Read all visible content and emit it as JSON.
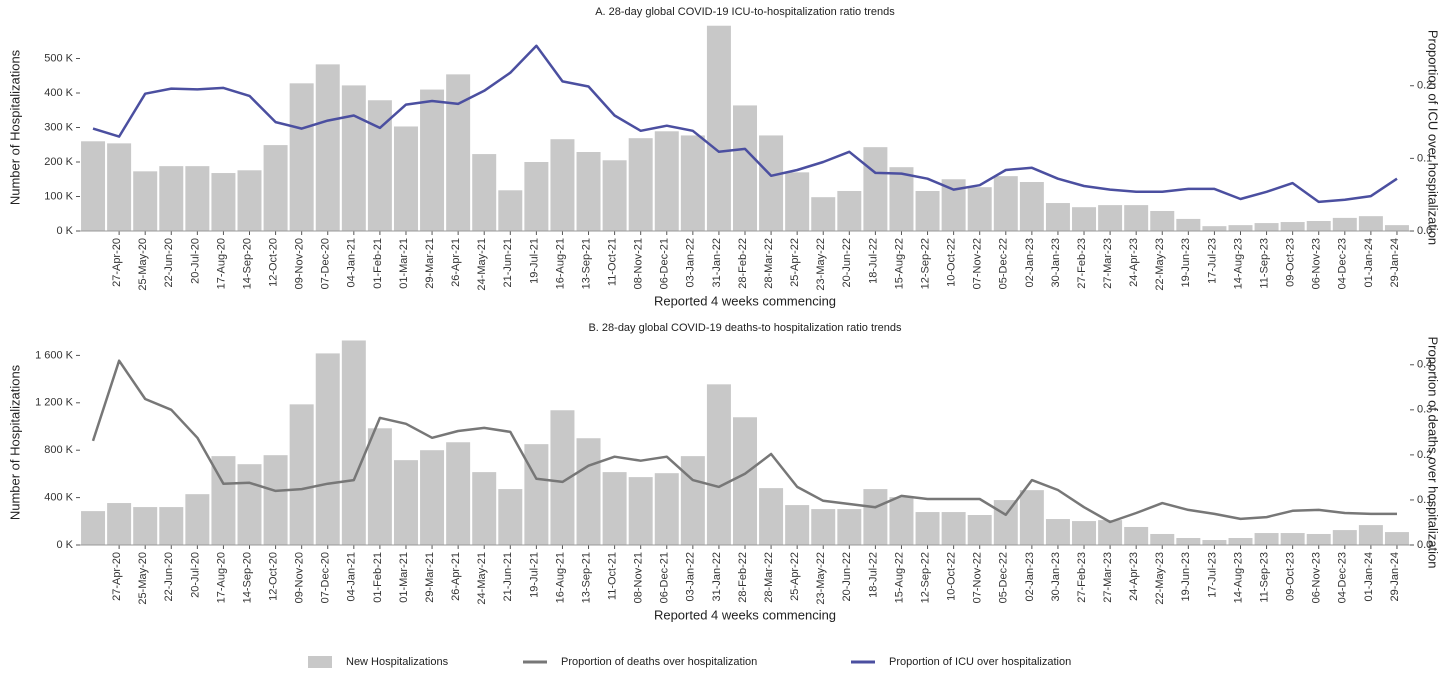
{
  "chart_data": [
    {
      "type": "combo",
      "title": "A. 28-day global COVID-19 ICU-to-hospitalization ratio trends",
      "x_label": "Reported 4 weeks commencing",
      "y_label": "Number of Hospitalizations",
      "y2_label": "Proportion of ICU over hospitalization",
      "categories": [
        null,
        "27-Apr-20",
        "25-May-20",
        "22-Jun-20",
        "20-Jul-20",
        "17-Aug-20",
        "14-Sep-20",
        "12-Oct-20",
        "09-Nov-20",
        "07-Dec-20",
        "04-Jan-21",
        "01-Feb-21",
        "01-Mar-21",
        "29-Mar-21",
        "26-Apr-21",
        "24-May-21",
        "21-Jun-21",
        "19-Jul-21",
        "16-Aug-21",
        "13-Sep-21",
        "11-Oct-21",
        "08-Nov-21",
        "06-Dec-21",
        "03-Jan-22",
        "31-Jan-22",
        "28-Feb-22",
        "28-Mar-22",
        "25-Apr-22",
        "23-May-22",
        "20-Jun-22",
        "18-Jul-22",
        "15-Aug-22",
        "12-Sep-22",
        "10-Oct-22",
        "07-Nov-22",
        "05-Dec-22",
        "02-Jan-23",
        "30-Jan-23",
        "27-Feb-23",
        "27-Mar-23",
        "24-Apr-23",
        "22-May-23",
        "19-Jun-23",
        "17-Jul-23",
        "14-Aug-23",
        "11-Sep-23",
        "09-Oct-23",
        "06-Nov-23",
        "04-Dec-23",
        "01-Jan-24",
        "29-Jan-24"
      ],
      "series": [
        {
          "name": "New Hospitalizations",
          "type": "bar",
          "color": "#c8c8c8",
          "values": [
            260000,
            254000,
            173000,
            188000,
            188000,
            168000,
            176000,
            249000,
            428000,
            483000,
            422000,
            379000,
            303000,
            410000,
            454000,
            223000,
            118000,
            200000,
            266000,
            229000,
            205000,
            269000,
            289000,
            277000,
            595000,
            364000,
            277000,
            170000,
            98000,
            116000,
            243000,
            185000,
            116000,
            150000,
            127000,
            159000,
            142000,
            81000,
            69000,
            75000,
            75000,
            58000,
            35000,
            14000,
            17000,
            23000,
            26000,
            29000,
            38000,
            43000,
            17000
          ]
        },
        {
          "name": "Proportion of ICU over hospitalization",
          "type": "line",
          "axis": "y2",
          "color": "#4b4fa0",
          "values": [
            0.141,
            0.13,
            0.189,
            0.196,
            0.195,
            0.197,
            0.186,
            0.15,
            0.141,
            0.152,
            0.159,
            0.142,
            0.174,
            0.179,
            0.175,
            0.193,
            0.218,
            0.255,
            0.206,
            0.199,
            0.159,
            0.138,
            0.145,
            0.138,
            0.109,
            0.113,
            0.076,
            0.084,
            0.095,
            0.109,
            0.08,
            0.079,
            0.072,
            0.057,
            0.063,
            0.084,
            0.087,
            0.072,
            0.062,
            0.057,
            0.054,
            0.054,
            0.058,
            0.058,
            0.044,
            0.054,
            0.066,
            0.04,
            0.043,
            0.048,
            0.072
          ]
        }
      ],
      "ylim": [
        0,
        600000
      ],
      "yticks": [
        {
          "value": 0,
          "label": "0 K"
        },
        {
          "value": 100000,
          "label": "100 K"
        },
        {
          "value": 200000,
          "label": "200 K"
        },
        {
          "value": 300000,
          "label": "300 K"
        },
        {
          "value": 400000,
          "label": "400 K"
        },
        {
          "value": 500000,
          "label": "500 K"
        }
      ],
      "y2lim": [
        0,
        0.285
      ],
      "y2ticks": [
        {
          "value": 0,
          "label": "0.0"
        },
        0.1,
        0.2
      ]
    },
    {
      "type": "combo",
      "title": "B. 28-day global COVID-19 deaths-to hospitalization ratio trends",
      "x_label": "Reported 4 weeks commencing",
      "y_label": "Number of Hospitalizations",
      "y2_label": "Proportion of deaths over hospitalization",
      "categories": [
        null,
        "27-Apr-20",
        "25-May-20",
        "22-Jun-20",
        "20-Jul-20",
        "17-Aug-20",
        "14-Sep-20",
        "12-Oct-20",
        "09-Nov-20",
        "07-Dec-20",
        "04-Jan-21",
        "01-Feb-21",
        "01-Mar-21",
        "29-Mar-21",
        "26-Apr-21",
        "24-May-21",
        "21-Jun-21",
        "19-Jul-21",
        "16-Aug-21",
        "13-Sep-21",
        "11-Oct-21",
        "08-Nov-21",
        "06-Dec-21",
        "03-Jan-22",
        "31-Jan-22",
        "28-Feb-22",
        "28-Mar-22",
        "25-Apr-22",
        "23-May-22",
        "20-Jun-22",
        "18-Jul-22",
        "15-Aug-22",
        "12-Sep-22",
        "10-Oct-22",
        "07-Nov-22",
        "05-Dec-22",
        "02-Jan-23",
        "30-Jan-23",
        "27-Feb-23",
        "27-Mar-23",
        "24-Apr-23",
        "22-May-23",
        "19-Jun-23",
        "17-Jul-23",
        "14-Aug-23",
        "11-Sep-23",
        "09-Oct-23",
        "06-Nov-23",
        "04-Dec-23",
        "01-Jan-24",
        "29-Jan-24"
      ],
      "series": [
        {
          "name": "New Hospitalizations",
          "type": "bar",
          "color": "#c8c8c8",
          "values": [
            286000,
            354000,
            320000,
            320000,
            429000,
            750000,
            682000,
            758000,
            1187000,
            1617000,
            1726000,
            985000,
            716000,
            800000,
            867000,
            615000,
            472000,
            851000,
            1137000,
            901000,
            615000,
            573000,
            606000,
            750000,
            1356000,
            1078000,
            480000,
            337000,
            303000,
            303000,
            472000,
            404000,
            278000,
            278000,
            253000,
            379000,
            463000,
            219000,
            202000,
            210000,
            152000,
            93000,
            59000,
            42000,
            59000,
            101000,
            101000,
            93000,
            126000,
            168000,
            109000
          ]
        },
        {
          "name": "Proportion of deaths over hospitalization",
          "type": "line",
          "axis": "y2",
          "color": "#777777",
          "values": [
            0.231,
            0.409,
            0.324,
            0.3,
            0.238,
            0.136,
            0.138,
            0.12,
            0.124,
            0.136,
            0.144,
            0.282,
            0.269,
            0.238,
            0.253,
            0.26,
            0.251,
            0.147,
            0.14,
            0.176,
            0.196,
            0.187,
            0.196,
            0.144,
            0.129,
            0.158,
            0.202,
            0.129,
            0.098,
            0.091,
            0.084,
            0.109,
            0.102,
            0.102,
            0.102,
            0.067,
            0.144,
            0.122,
            0.084,
            0.051,
            0.071,
            0.093,
            0.078,
            0.069,
            0.058,
            0.062,
            0.076,
            0.078,
            0.071,
            0.069,
            0.069
          ]
        }
      ],
      "ylim": [
        0,
        1730000
      ],
      "yticks": [
        {
          "value": 0,
          "label": "0 K"
        },
        {
          "value": 400000,
          "label": "400 K"
        },
        {
          "value": 800000,
          "label": "800 K"
        },
        {
          "value": 1200000,
          "label": "1 200 K"
        },
        {
          "value": 1600000,
          "label": "1 600 K"
        }
      ],
      "y2lim": [
        0,
        0.455
      ],
      "y2ticks": [
        {
          "value": 0,
          "label": "0.0"
        },
        0.1,
        0.2,
        0.3,
        0.4
      ]
    }
  ]
}
